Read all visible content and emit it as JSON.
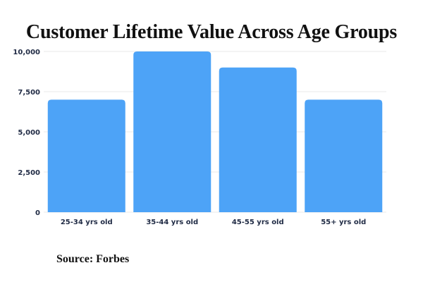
{
  "chart_data": {
    "type": "bar",
    "title": "Customer Lifetime Value Across Age Groups",
    "categories": [
      "25-34 yrs old",
      "35-44 yrs old",
      "45-55 yrs old",
      "55+ yrs old"
    ],
    "values": [
      7000,
      10000,
      9000,
      7000
    ],
    "yticks": [
      0,
      2500,
      5000,
      7500,
      10000
    ],
    "ytick_labels": [
      "0",
      "2,500",
      "5,000",
      "7,500",
      "10,000"
    ],
    "ylim": [
      0,
      10000
    ],
    "xlabel": "",
    "ylabel": "",
    "grid": true,
    "legend": "none",
    "bar_color": "#4da3f7",
    "tick_label_color": "#1f2a44",
    "gridline_color": "#eaeaea"
  },
  "source": "Source: Forbes"
}
